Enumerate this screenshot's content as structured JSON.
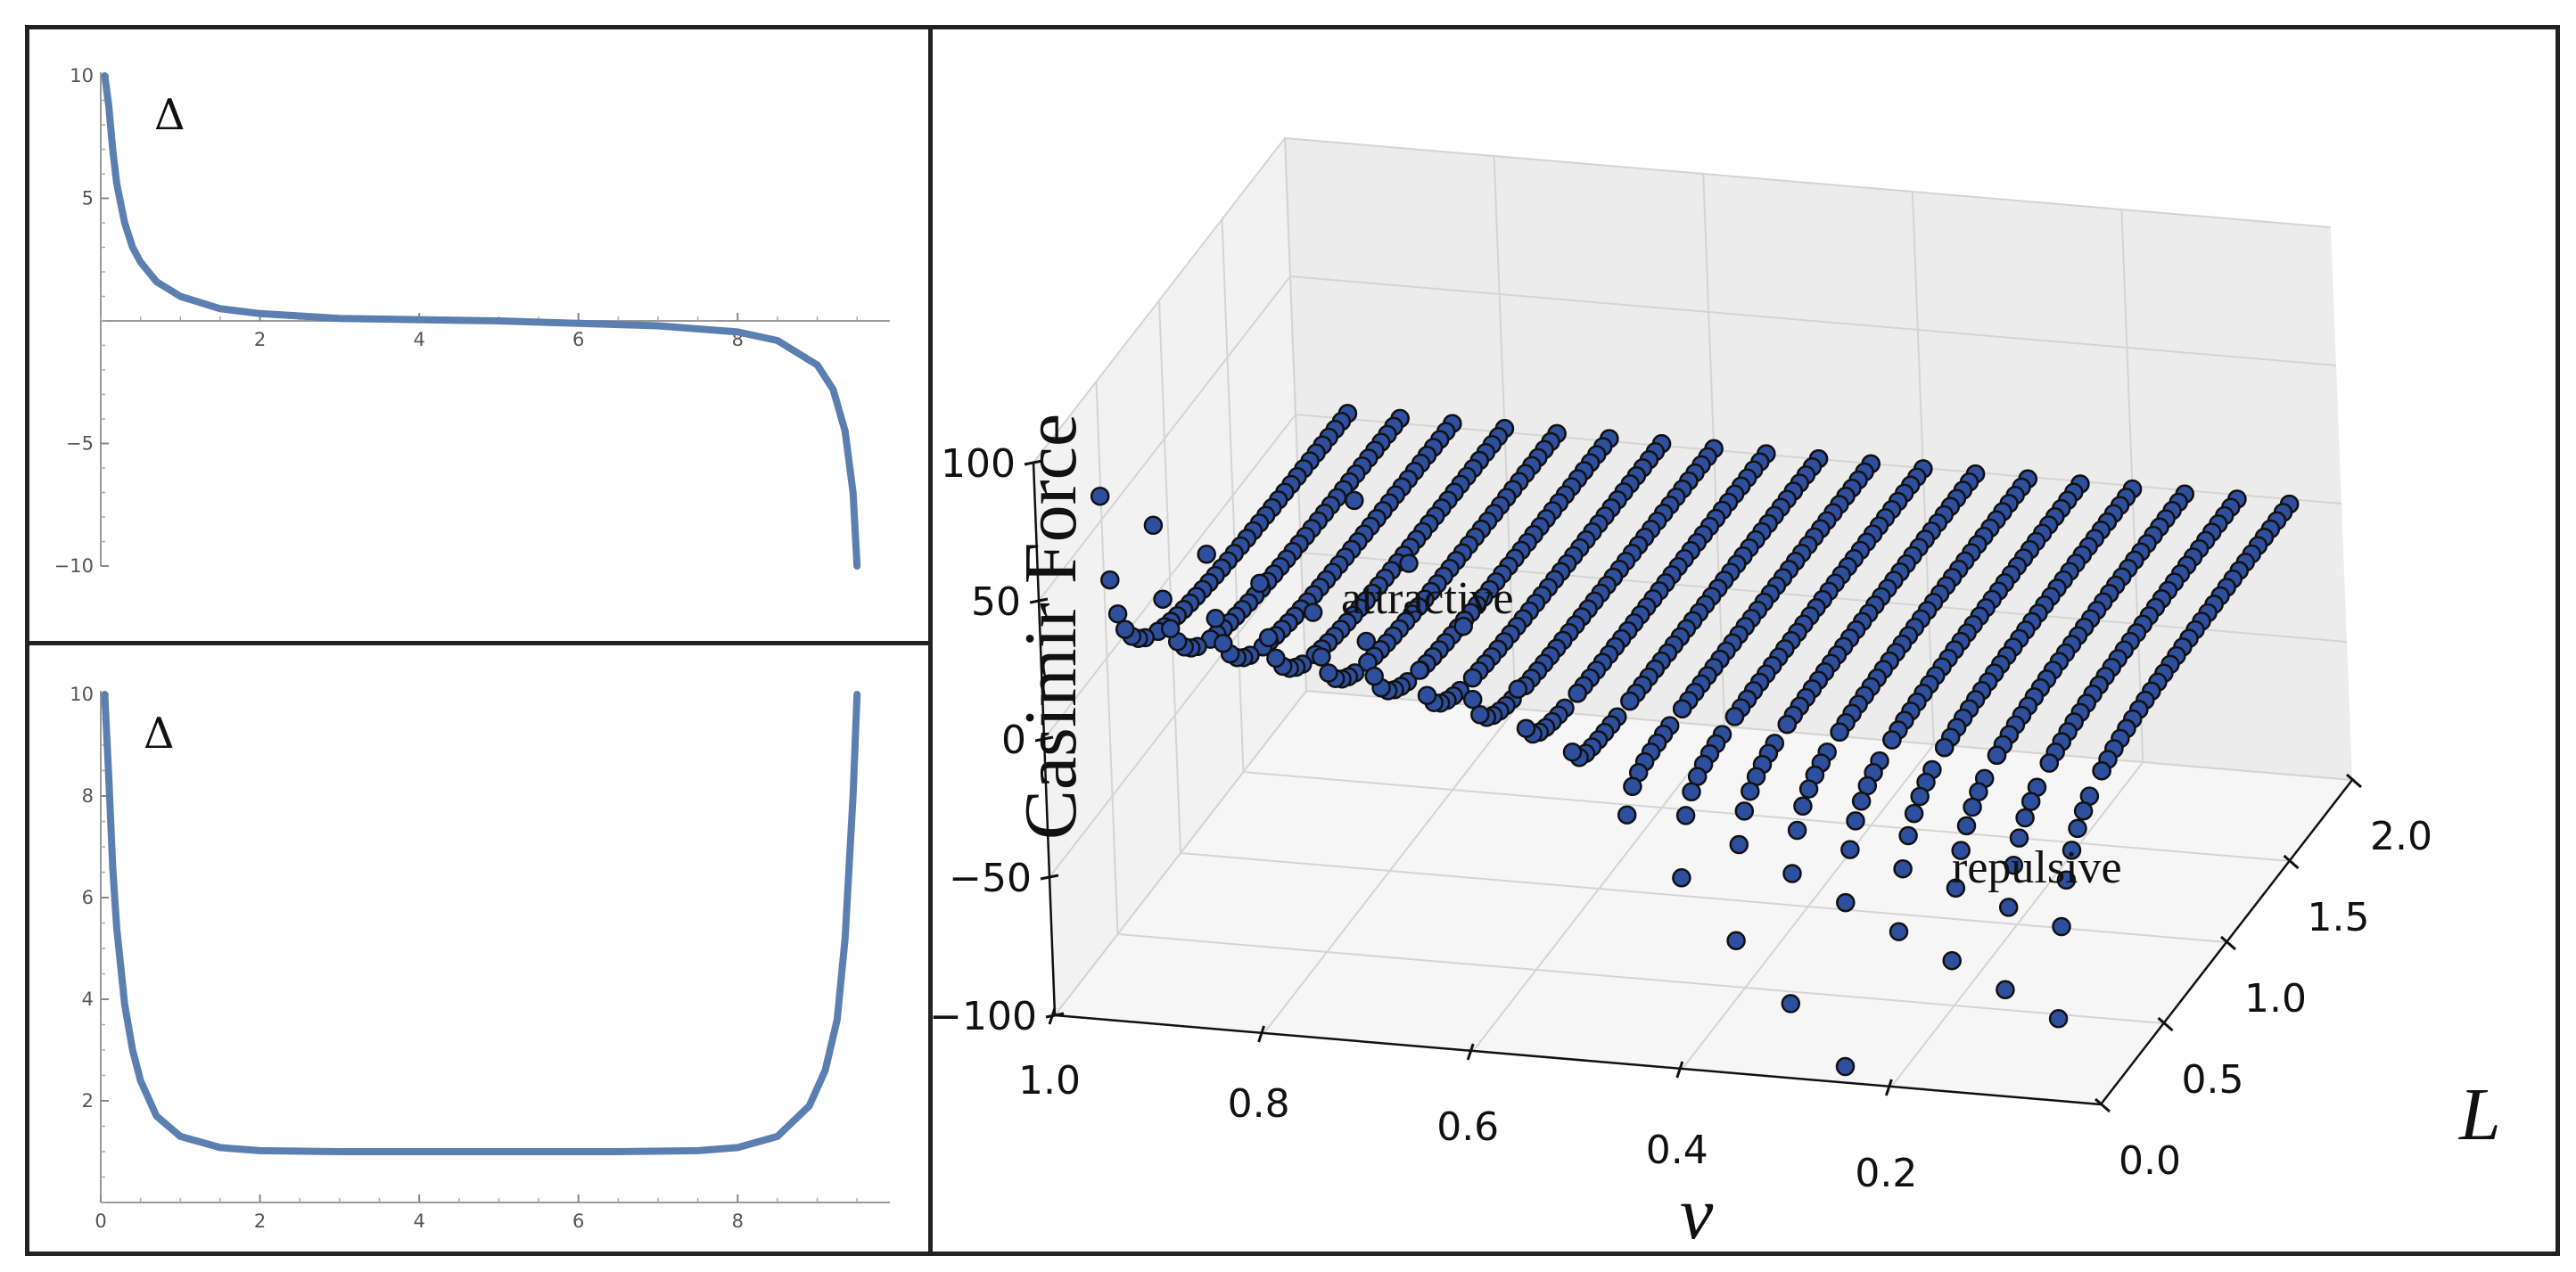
{
  "chart_data": [
    {
      "type": "line",
      "series_label": "Δ",
      "xlim": [
        0,
        9.8
      ],
      "ylim": [
        -10,
        10
      ],
      "x_ticks": [
        "2",
        "4",
        "6",
        "8"
      ],
      "y_ticks": [
        "10",
        "5",
        "−5",
        "−10"
      ],
      "series": [
        {
          "color": "#5b7fb0",
          "x": [
            0.05,
            0.1,
            0.15,
            0.2,
            0.3,
            0.4,
            0.5,
            0.7,
            1.0,
            1.5,
            2.0,
            3.0,
            4.0,
            5.0,
            6.0,
            7.0,
            8.0,
            8.5,
            9.0,
            9.2,
            9.35,
            9.45,
            9.5
          ],
          "y": [
            10,
            8.8,
            7.0,
            5.6,
            4.0,
            3.0,
            2.4,
            1.6,
            1.0,
            0.5,
            0.3,
            0.1,
            0.05,
            0.0,
            -0.1,
            -0.2,
            -0.45,
            -0.8,
            -1.8,
            -2.8,
            -4.5,
            -7.0,
            -10
          ]
        }
      ]
    },
    {
      "type": "line",
      "series_label": "Δ",
      "xlim": [
        0,
        9.8
      ],
      "ylim": [
        0,
        10
      ],
      "x_ticks": [
        "0",
        "2",
        "4",
        "6",
        "8"
      ],
      "y_ticks": [
        "10",
        "8",
        "6",
        "4",
        "2"
      ],
      "series": [
        {
          "color": "#5b7fb0",
          "x": [
            0.05,
            0.1,
            0.15,
            0.2,
            0.3,
            0.4,
            0.5,
            0.7,
            1.0,
            1.5,
            2.0,
            3.0,
            5.0,
            6.5,
            7.5,
            8.0,
            8.5,
            8.9,
            9.1,
            9.25,
            9.35,
            9.45,
            9.5
          ],
          "y": [
            10,
            8.4,
            6.6,
            5.4,
            3.9,
            3.0,
            2.4,
            1.7,
            1.3,
            1.08,
            1.02,
            1.0,
            1.0,
            1.0,
            1.02,
            1.08,
            1.3,
            1.9,
            2.6,
            3.6,
            5.2,
            8.0,
            10
          ]
        }
      ]
    },
    {
      "type": "scatter",
      "subtype": "3d",
      "zlabel": "Casimir Force",
      "xlabel": "ν",
      "ylabel": "L",
      "nu_ticks": [
        "1.0",
        "0.8",
        "0.6",
        "0.4",
        "0.2"
      ],
      "L_ticks": [
        "0.0",
        "0.5",
        "1.0",
        "1.5",
        "2.0"
      ],
      "force_ticks": [
        "100",
        "50",
        "0",
        "−50",
        "−100"
      ],
      "zlim": [
        -100,
        100
      ],
      "annotations": [
        "attractive",
        "repulsive"
      ],
      "marker_color": "#2e4f9e",
      "marker_edge": "#111111",
      "nu_values": [
        0.95,
        0.9,
        0.85,
        0.8,
        0.75,
        0.7,
        0.65,
        0.6,
        0.55,
        0.5,
        0.45,
        0.4,
        0.35,
        0.3,
        0.25,
        0.2,
        0.15,
        0.1,
        0.05
      ],
      "L_values": [
        0.05,
        0.1,
        0.15,
        0.2,
        0.25,
        0.3,
        0.35,
        0.4,
        0.5,
        0.6,
        0.7,
        0.8,
        0.9,
        1.0,
        1.2,
        1.4,
        1.6,
        1.8,
        2.0
      ],
      "force_model": "attractive (force > 0) for large ν near L = 0, repulsive (force < 0) for small ν near L = 0, approaching ≈ 0 as L increases"
    }
  ]
}
